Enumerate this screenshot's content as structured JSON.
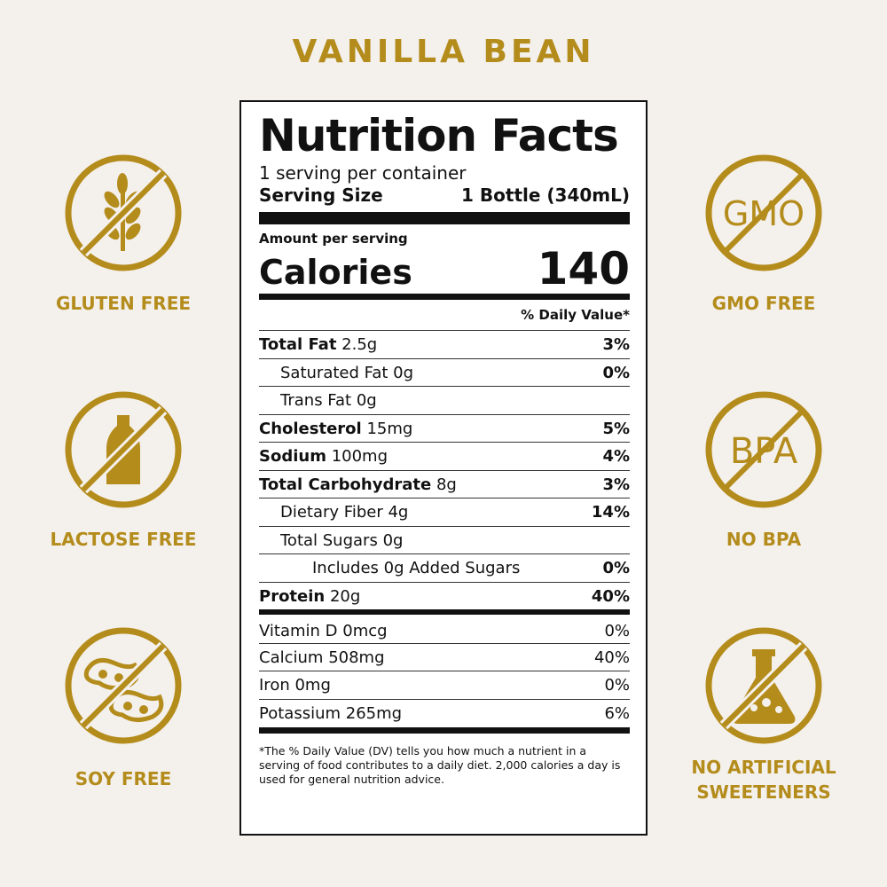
{
  "header": {
    "title": "VANILLA BEAN"
  },
  "badges": {
    "left": [
      {
        "label": "GLUTEN FREE"
      },
      {
        "label": "LACTOSE FREE"
      },
      {
        "label": "SOY FREE"
      }
    ],
    "right": [
      {
        "icon_text": "GMO",
        "label": "GMO FREE"
      },
      {
        "icon_text": "BPA",
        "label": "NO BPA"
      },
      {
        "label_lines": [
          "NO ARTIFICIAL",
          "SWEETENERS"
        ]
      }
    ]
  },
  "label": {
    "heading": "Nutrition Facts",
    "servings": "1 serving per container",
    "serving_size_label": "Serving Size",
    "serving_size_value": "1 Bottle (340mL)",
    "amount_per_serving": "Amount per serving",
    "calories_label": "Calories",
    "calories_value": "140",
    "daily_value_header": "% Daily Value*",
    "rows": [
      {
        "name": "Total Fat",
        "amount": "2.5g",
        "dv": "3%"
      },
      {
        "name": "Saturated Fat",
        "amount": "0g",
        "dv": "0%"
      },
      {
        "name": "Trans Fat",
        "amount": "0g"
      },
      {
        "name": "Cholesterol",
        "amount": "15mg",
        "dv": "5%"
      },
      {
        "name": "Sodium",
        "amount": "100mg",
        "dv": "4%"
      },
      {
        "name": "Total Carbohydrate",
        "amount": "8g",
        "dv": "3%"
      },
      {
        "name": "Dietary Fiber",
        "amount": "4g",
        "dv": "14%"
      },
      {
        "name": "Total Sugars",
        "amount": "0g"
      },
      {
        "name": "Includes 0g Added Sugars",
        "dv": "0%"
      },
      {
        "name": "Protein",
        "amount": "20g",
        "dv": "40%"
      }
    ],
    "vitamins": [
      {
        "name": "Vitamin D",
        "amount": "0mcg",
        "dv": "0%"
      },
      {
        "name": "Calcium",
        "amount": "508mg",
        "dv": "40%"
      },
      {
        "name": "Iron",
        "amount": "0mg",
        "dv": "0%"
      },
      {
        "name": "Potassium",
        "amount": "265mg",
        "dv": "6%"
      }
    ],
    "footnote": "*The % Daily Value (DV) tells you how much a nutrient in a serving of food contributes to a daily diet. 2,000 calories a day is used for general nutrition advice."
  }
}
